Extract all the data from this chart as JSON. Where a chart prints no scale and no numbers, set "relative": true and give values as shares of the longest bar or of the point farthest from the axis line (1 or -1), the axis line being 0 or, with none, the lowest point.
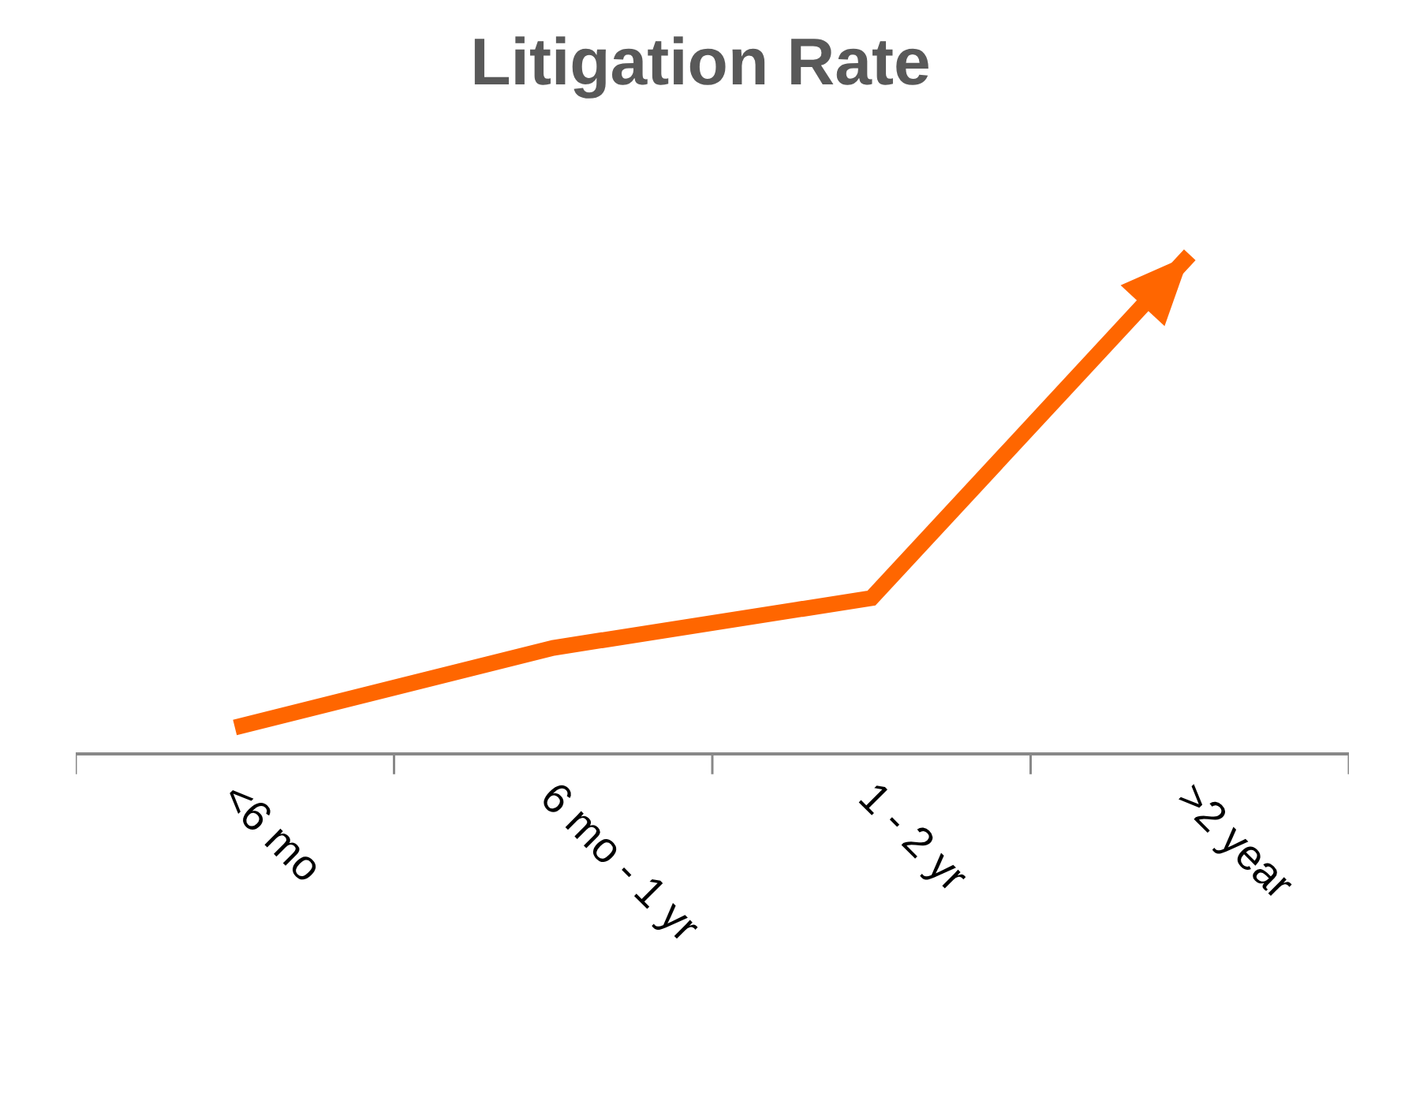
{
  "chart_data": {
    "type": "line",
    "title": "Litigation Rate",
    "relative": true,
    "categories": [
      "<6 mo",
      "6 mo - 1 yr",
      "1 - 2 yr",
      ">2 year"
    ],
    "series": [
      {
        "color": "#ff6600",
        "values": [
          0.05,
          0.21,
          0.31,
          1
        ]
      }
    ]
  }
}
